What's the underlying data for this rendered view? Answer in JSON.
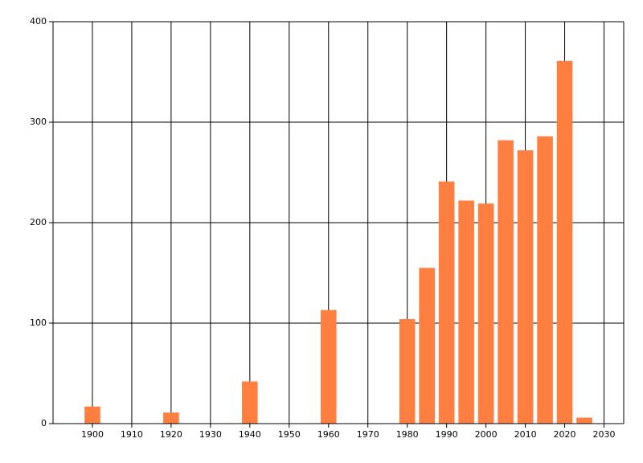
{
  "chart_data": {
    "type": "bar",
    "x": [
      1900,
      1920,
      1940,
      1960,
      1980,
      1985,
      1990,
      1995,
      2000,
      2005,
      2010,
      2015,
      2020,
      2025
    ],
    "values": [
      17,
      11,
      42,
      113,
      104,
      155,
      241,
      222,
      219,
      282,
      272,
      286,
      361,
      6
    ],
    "bar_width": 4,
    "color": "#ff7f40",
    "xlim": [
      1890,
      2035
    ],
    "xticks": [
      1900,
      1910,
      1920,
      1930,
      1940,
      1950,
      1960,
      1970,
      1980,
      1990,
      2000,
      2010,
      2020,
      2030
    ],
    "ylim": [
      0,
      400
    ],
    "yticks": [
      0,
      100,
      200,
      300,
      400
    ],
    "grid": true
  }
}
